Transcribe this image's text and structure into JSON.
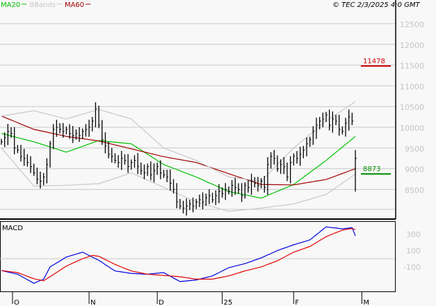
{
  "header": {
    "legend": [
      {
        "label": "MA20",
        "color": "#00c000"
      },
      {
        "label": "BBands",
        "color": "#c8c8c8"
      },
      {
        "label": "MA60",
        "color": "#a00000"
      }
    ],
    "copyright": "© TEC 2/3/2025 4:0 GMT"
  },
  "chart_data": [
    {
      "type": "ohlc",
      "title": "",
      "ylim": [
        7800,
        12900
      ],
      "grid": true,
      "y_ticks": [
        8500,
        9000,
        9500,
        10000,
        10500,
        11000,
        11500,
        12000,
        12500
      ],
      "x_tick_labels": [
        {
          "label": "O",
          "bar": 3
        },
        {
          "label": "N",
          "bar": 27
        },
        {
          "label": "D",
          "bar": 48
        },
        {
          "label": "25",
          "bar": 68
        },
        {
          "label": "F",
          "bar": 90
        },
        {
          "label": "M",
          "bar": 111
        }
      ],
      "close": [
        9650,
        9750,
        9900,
        9850,
        9500,
        9450,
        9300,
        9250,
        9150,
        9050,
        8900,
        8750,
        8700,
        8800,
        9100,
        9600,
        9950,
        10000,
        9950,
        9900,
        9950,
        9850,
        9800,
        9850,
        9800,
        9900,
        9950,
        10000,
        10150,
        10450,
        10050,
        9700,
        9550,
        9350,
        9300,
        9200,
        9150,
        9250,
        9200,
        9050,
        9150,
        9200,
        9050,
        8950,
        8900,
        9050,
        8850,
        8950,
        9050,
        8900,
        8850,
        8800,
        8650,
        8500,
        8200,
        8100,
        8050,
        8100,
        8150,
        8100,
        8200,
        8250,
        8200,
        8300,
        8350,
        8250,
        8350,
        8450,
        8400,
        8500,
        8450,
        8600,
        8550,
        8500,
        8350,
        8600,
        8550,
        8700,
        8650,
        8600,
        8700,
        8550,
        9100,
        9300,
        9250,
        9000,
        9100,
        9050,
        8800,
        9150,
        9300,
        9250,
        9350,
        9450,
        9600,
        9700,
        9900,
        10050,
        10150,
        10200,
        10300,
        10050,
        10200,
        10150,
        9950,
        9900,
        10100,
        10250,
        10150,
        9250
      ],
      "last_bar": {
        "high": 9450,
        "low": 8450
      },
      "series": [
        {
          "name": "MA20",
          "color": "#00c000",
          "sample_bars": [
            0,
            10,
            20,
            30,
            40,
            50,
            60,
            70,
            80,
            90,
            100,
            109
          ],
          "values": [
            9850,
            9650,
            9400,
            9680,
            9600,
            9100,
            8800,
            8450,
            8290,
            8620,
            9200,
            9780
          ]
        },
        {
          "name": "MA60",
          "color": "#a00000",
          "sample_bars": [
            0,
            10,
            20,
            30,
            40,
            50,
            60,
            70,
            80,
            90,
            100,
            109
          ],
          "values": [
            10270,
            9950,
            9780,
            9670,
            9480,
            9290,
            9150,
            8880,
            8620,
            8610,
            8740,
            9000
          ]
        },
        {
          "name": "BBands upper",
          "color": "#c8c8c8",
          "sample_bars": [
            0,
            10,
            20,
            30,
            40,
            50,
            60,
            70,
            80,
            90,
            100,
            109
          ],
          "values": [
            10270,
            10400,
            10200,
            10430,
            10200,
            9500,
            9200,
            8800,
            8700,
            9500,
            10150,
            10620
          ]
        },
        {
          "name": "BBands lower",
          "color": "#c8c8c8",
          "sample_bars": [
            0,
            10,
            20,
            30,
            40,
            50,
            60,
            70,
            80,
            90,
            100,
            109
          ],
          "values": [
            9500,
            8580,
            8600,
            8640,
            8900,
            8550,
            8200,
            7970,
            8050,
            8150,
            8380,
            8870
          ]
        }
      ],
      "markers": [
        {
          "label": "11478",
          "value": 11478,
          "color": "#cc0000"
        },
        {
          "label": "8873",
          "value": 8873,
          "color": "#009000"
        }
      ]
    },
    {
      "type": "line",
      "title": "MACD",
      "ylim": [
        -450,
        550
      ],
      "y_ticks": [
        {
          "label": "300",
          "value": 300
        },
        {
          "label": "100",
          "value": 100
        },
        {
          "label": "-100",
          "value": -100
        }
      ],
      "zero_line": true,
      "series": [
        {
          "color": "#0000e0",
          "sample_bars": [
            0,
            5,
            10,
            13,
            15,
            20,
            25,
            30,
            35,
            40,
            45,
            50,
            55,
            60,
            65,
            70,
            75,
            80,
            85,
            90,
            95,
            100,
            105,
            108,
            109
          ],
          "values": [
            -145,
            -190,
            -300,
            -250,
            -100,
            20,
            80,
            -20,
            -150,
            -180,
            -190,
            -170,
            -280,
            -260,
            -210,
            -110,
            -60,
            10,
            100,
            170,
            230,
            390,
            365,
            380,
            280
          ]
        },
        {
          "color": "#e00000",
          "sample_bars": [
            0,
            5,
            10,
            13,
            15,
            20,
            25,
            28,
            30,
            35,
            40,
            45,
            50,
            55,
            60,
            65,
            70,
            75,
            80,
            85,
            90,
            95,
            100,
            105,
            108,
            109
          ],
          "values": [
            -145,
            -170,
            -245,
            -270,
            -220,
            -90,
            0,
            40,
            30,
            -70,
            -150,
            -190,
            -205,
            -220,
            -250,
            -250,
            -210,
            -150,
            -100,
            -25,
            80,
            150,
            270,
            350,
            370,
            355
          ]
        }
      ]
    }
  ]
}
